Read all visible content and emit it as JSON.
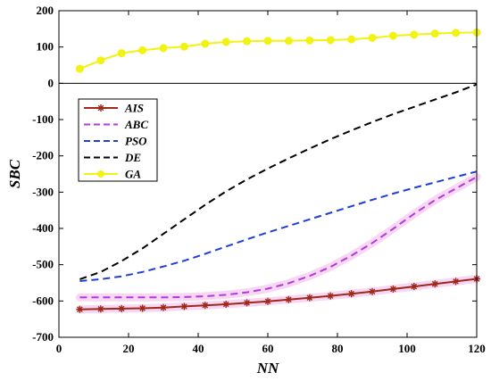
{
  "chart_data": {
    "type": "line",
    "xlabel": "NN",
    "ylabel": "SBC",
    "xlim": [
      0,
      120
    ],
    "ylim": [
      -700,
      200
    ],
    "xticks": [
      0,
      20,
      40,
      60,
      80,
      100,
      120
    ],
    "yticks": [
      -700,
      -600,
      -500,
      -400,
      -300,
      -200,
      -100,
      0,
      100,
      200
    ],
    "grid": false,
    "legend_position": "left-middle",
    "series": [
      {
        "name": "AIS",
        "color": "#a0281a",
        "style": "solid",
        "marker": "star",
        "x": [
          6,
          12,
          18,
          24,
          30,
          36,
          42,
          48,
          54,
          60,
          66,
          72,
          78,
          84,
          90,
          96,
          102,
          108,
          114,
          120
        ],
        "y": [
          -623,
          -622,
          -621,
          -620,
          -618,
          -615,
          -612,
          -609,
          -605,
          -601,
          -596,
          -591,
          -586,
          -580,
          -574,
          -567,
          -560,
          -553,
          -546,
          -539
        ]
      },
      {
        "name": "ABC",
        "color": "#b23bdb",
        "style": "dashed",
        "marker": "none",
        "x": [
          6,
          12,
          18,
          24,
          30,
          36,
          42,
          48,
          54,
          60,
          66,
          72,
          78,
          84,
          90,
          96,
          102,
          108,
          114,
          120
        ],
        "y": [
          -590,
          -590,
          -590,
          -590,
          -590,
          -589,
          -587,
          -583,
          -576,
          -566,
          -551,
          -531,
          -506,
          -475,
          -440,
          -401,
          -360,
          -322,
          -290,
          -258
        ]
      },
      {
        "name": "PSO",
        "color": "#1f3fd6",
        "style": "dashed",
        "marker": "none",
        "x": [
          6,
          12,
          18,
          24,
          30,
          36,
          42,
          48,
          54,
          60,
          66,
          72,
          78,
          84,
          90,
          96,
          102,
          108,
          114,
          120
        ],
        "y": [
          -545,
          -540,
          -532,
          -520,
          -505,
          -489,
          -470,
          -450,
          -430,
          -411,
          -393,
          -375,
          -357,
          -339,
          -321,
          -304,
          -288,
          -273,
          -258,
          -243
        ]
      },
      {
        "name": "DE",
        "color": "#000000",
        "style": "dashed",
        "marker": "none",
        "x": [
          6,
          12,
          18,
          24,
          30,
          36,
          42,
          48,
          54,
          60,
          66,
          72,
          78,
          84,
          90,
          96,
          102,
          108,
          114,
          120
        ],
        "y": [
          -540,
          -520,
          -490,
          -455,
          -415,
          -375,
          -335,
          -298,
          -265,
          -235,
          -207,
          -180,
          -154,
          -130,
          -107,
          -85,
          -65,
          -45,
          -25,
          -3
        ]
      },
      {
        "name": "GA",
        "color": "#f2f213",
        "style": "solid",
        "marker": "circle",
        "x": [
          6,
          12,
          18,
          24,
          30,
          36,
          42,
          48,
          54,
          60,
          66,
          72,
          78,
          84,
          90,
          96,
          102,
          108,
          114,
          120
        ],
        "y": [
          40,
          63,
          83,
          91,
          97,
          101,
          109,
          114,
          116,
          117,
          117,
          118,
          119,
          121,
          125,
          131,
          134,
          137,
          139,
          140
        ]
      }
    ]
  }
}
